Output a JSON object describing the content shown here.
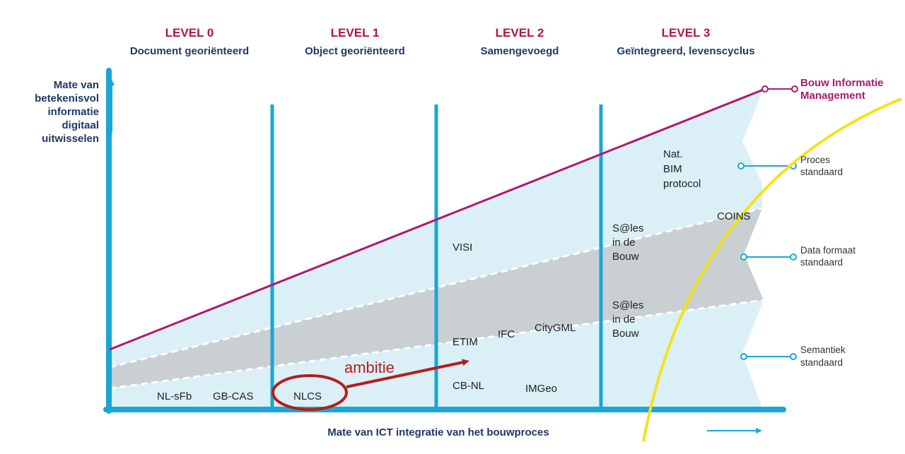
{
  "colors": {
    "accent": "#1aa7d4",
    "magenta": "#b0176f",
    "level_title": "#b3143a",
    "navy": "#1f3864",
    "yellow": "#f2e31b",
    "ambition": "#b71c1c",
    "band_light": "#dbeff7",
    "band_grey": "#c9cfd3"
  },
  "levels": [
    {
      "title": "LEVEL 0",
      "subtitle": "Document georiënteerd"
    },
    {
      "title": "LEVEL 1",
      "subtitle": "Object georiënteerd"
    },
    {
      "title": "LEVEL 2",
      "subtitle": "Samengevoegd"
    },
    {
      "title": "LEVEL 3",
      "subtitle": "Geïntegreerd, levenscyclus"
    }
  ],
  "y_axis_label": [
    "Mate van",
    "betekenisvol",
    "informatie",
    "digitaal",
    "uitwisselen"
  ],
  "x_axis_label": "Mate van ICT integratie van het bouwproces",
  "bim_label": [
    "Bouw Informatie",
    "Management"
  ],
  "right_labels": {
    "proces": [
      "Proces",
      "standaard"
    ],
    "data": [
      "Data formaat",
      "standaard"
    ],
    "semantiek": [
      "Semantiek",
      "standaard"
    ]
  },
  "standards": {
    "nat_bim": [
      "Nat.",
      "BIM",
      "protocol"
    ],
    "coins": "COINS",
    "sales_upper": [
      "S@les",
      "in de",
      "Bouw"
    ],
    "sales_lower": [
      "S@les",
      "in de",
      "Bouw"
    ],
    "visi": "VISI",
    "etim": "ETIM",
    "ifc": "IFC",
    "citygml": "CityGML",
    "cbnl": "CB-NL",
    "imgeo": "IMGeo",
    "nlsfb": "NL-sFb",
    "gbcas": "GB-CAS",
    "nlcs": "NLCS"
  },
  "ambition_label": "ambitie"
}
